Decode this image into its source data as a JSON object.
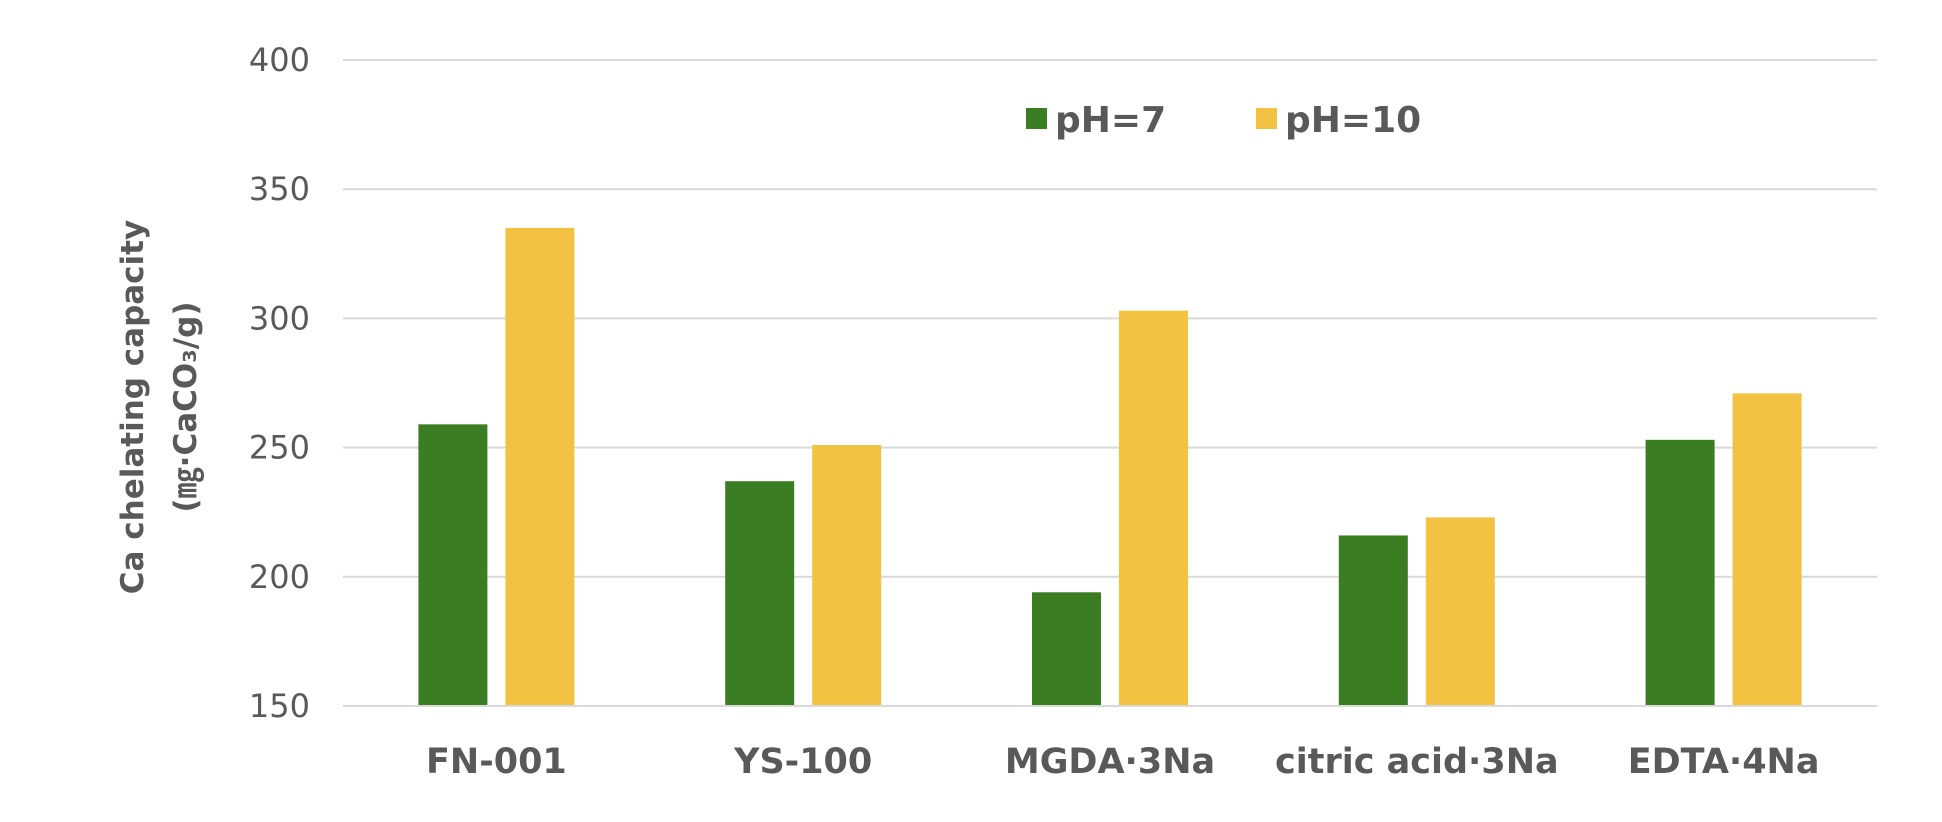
{
  "chart_data": {
    "type": "bar",
    "categories": [
      "FN-001",
      "YS-100",
      "MGDA·3Na",
      "citric acid·3Na",
      "EDTA·4Na"
    ],
    "series": [
      {
        "name": "pH=7",
        "color": "#3a7d22",
        "values": [
          259,
          237,
          194,
          216,
          253
        ]
      },
      {
        "name": "pH=10",
        "color": "#f4c242",
        "values": [
          335,
          251,
          303,
          223,
          271
        ]
      }
    ],
    "ylabel": "Ca chelating capacity",
    "ylabel_unit": "(㎎·CaCO₃/g)",
    "ylim": [
      150,
      400
    ],
    "yticks": [
      150,
      200,
      250,
      300,
      350,
      400
    ],
    "grid": true,
    "legend_position": "top-center"
  }
}
